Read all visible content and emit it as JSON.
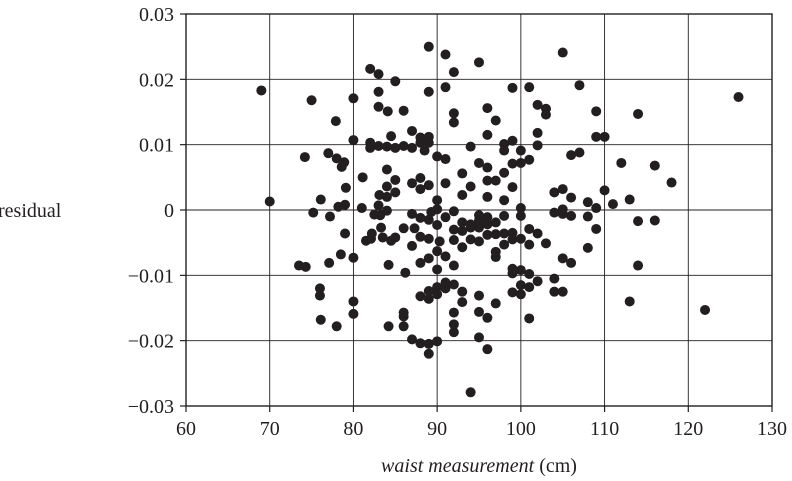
{
  "chart_data": {
    "type": "scatter",
    "xlabel_italic": "waist measurement",
    "xlabel_unit": "(cm)",
    "ylabel": "residual",
    "xlim": [
      60,
      130
    ],
    "ylim": [
      -0.03,
      0.03
    ],
    "x_ticks": [
      "60",
      "70",
      "80",
      "90",
      "100",
      "110",
      "120",
      "130"
    ],
    "y_ticks": [
      "0.03",
      "0.02",
      "0.01",
      "0",
      "−0.01",
      "−0.02",
      "−0.03"
    ],
    "grid": true,
    "marker_color": "#231f20",
    "points": [
      [
        69,
        0.0183
      ],
      [
        70,
        0.0013
      ],
      [
        73.5,
        -0.0085
      ],
      [
        74.2,
        0.0081
      ],
      [
        74.3,
        -0.0087
      ],
      [
        75,
        0.0168
      ],
      [
        75.2,
        -0.0004
      ],
      [
        76,
        -0.012
      ],
      [
        76,
        -0.0131
      ],
      [
        76.1,
        -0.0168
      ],
      [
        76.1,
        0.0016
      ],
      [
        77,
        0.0087
      ],
      [
        77.1,
        -0.0081
      ],
      [
        77.2,
        -0.001
      ],
      [
        77.9,
        0.0136
      ],
      [
        78,
        0.0079
      ],
      [
        78,
        -0.0178
      ],
      [
        78.2,
        0.0005
      ],
      [
        78.5,
        -0.0068
      ],
      [
        78.6,
        0.0066
      ],
      [
        78.9,
        0.0073
      ],
      [
        79,
        0.0008
      ],
      [
        79.1,
        0.0034
      ],
      [
        79,
        -0.0036
      ],
      [
        80,
        0.0171
      ],
      [
        80,
        0.0107
      ],
      [
        80,
        -0.0073
      ],
      [
        80,
        -0.014
      ],
      [
        80,
        -0.0159
      ],
      [
        81,
        0.0003
      ],
      [
        81.1,
        0.005
      ],
      [
        81.5,
        -0.0047
      ],
      [
        82,
        0.0216
      ],
      [
        82,
        0.0103
      ],
      [
        82,
        0.0095
      ],
      [
        82.1,
        -0.0044
      ],
      [
        82.2,
        -0.0036
      ],
      [
        82.5,
        -0.0007
      ],
      [
        83,
        0.0208
      ],
      [
        83,
        0.0181
      ],
      [
        83,
        0.0158
      ],
      [
        83,
        0.0098
      ],
      [
        83,
        0.0007
      ],
      [
        83.1,
        0.0023
      ],
      [
        83.2,
        -0.0008
      ],
      [
        83.3,
        -0.0027
      ],
      [
        83.5,
        -0.0042
      ],
      [
        84,
        0.0097
      ],
      [
        84,
        0.0062
      ],
      [
        84,
        0.0036
      ],
      [
        84,
        0.002
      ],
      [
        84,
        -0.0001
      ],
      [
        84.1,
        0.0151
      ],
      [
        84.2,
        -0.0084
      ],
      [
        84.2,
        -0.0178
      ],
      [
        84.5,
        0.0113
      ],
      [
        84.5,
        -0.0047
      ],
      [
        85,
        0.0197
      ],
      [
        85,
        0.0095
      ],
      [
        85,
        0.0046
      ],
      [
        85,
        0.0027
      ],
      [
        85,
        -0.0042
      ],
      [
        86,
        0.0152
      ],
      [
        86,
        0.0098
      ],
      [
        86,
        -0.0028
      ],
      [
        86,
        -0.0157
      ],
      [
        86,
        -0.0163
      ],
      [
        86,
        -0.0178
      ],
      [
        86.2,
        -0.0096
      ],
      [
        87,
        0.0121
      ],
      [
        87,
        0.0095
      ],
      [
        87,
        0.0041
      ],
      [
        87,
        -0.0006
      ],
      [
        87,
        -0.0055
      ],
      [
        87,
        -0.0198
      ],
      [
        87.3,
        -0.0028
      ],
      [
        88,
        0.0111
      ],
      [
        88,
        0.0103
      ],
      [
        88,
        0.0049
      ],
      [
        88,
        0.0032
      ],
      [
        88,
        -0.0012
      ],
      [
        88,
        -0.0041
      ],
      [
        88,
        -0.0081
      ],
      [
        88,
        -0.0132
      ],
      [
        88,
        -0.0204
      ],
      [
        88.5,
        0.0091
      ],
      [
        89,
        0.025
      ],
      [
        89,
        0.0181
      ],
      [
        89,
        0.0112
      ],
      [
        89,
        0.0103
      ],
      [
        89,
        0.0038
      ],
      [
        89,
        -0.0015
      ],
      [
        89,
        -0.0044
      ],
      [
        89,
        -0.0074
      ],
      [
        89,
        -0.0124
      ],
      [
        89,
        -0.0136
      ],
      [
        89,
        -0.0205
      ],
      [
        89,
        -0.022
      ],
      [
        89.3,
        -0.0003
      ],
      [
        90,
        0.0082
      ],
      [
        90,
        0.0015
      ],
      [
        90,
        0.0001
      ],
      [
        90,
        -0.0023
      ],
      [
        90,
        -0.0063
      ],
      [
        90,
        -0.0091
      ],
      [
        90,
        -0.0118
      ],
      [
        90,
        -0.0129
      ],
      [
        90,
        -0.0201
      ],
      [
        90.3,
        -0.0048
      ],
      [
        91,
        0.0238
      ],
      [
        91,
        0.0188
      ],
      [
        91,
        0.0078
      ],
      [
        91,
        0.0041
      ],
      [
        91,
        -0.0011
      ],
      [
        91,
        -0.0071
      ],
      [
        91,
        -0.0111
      ],
      [
        91,
        -0.012
      ],
      [
        92,
        0.0211
      ],
      [
        92,
        0.0148
      ],
      [
        92,
        0.0134
      ],
      [
        92,
        -0.0002
      ],
      [
        92,
        -0.003
      ],
      [
        92,
        -0.0046
      ],
      [
        92,
        -0.0085
      ],
      [
        92,
        -0.0114
      ],
      [
        92,
        -0.0157
      ],
      [
        92,
        -0.0175
      ],
      [
        92,
        -0.0187
      ],
      [
        93,
        0.0056
      ],
      [
        93,
        0.0023
      ],
      [
        93,
        -0.0019
      ],
      [
        93,
        -0.0032
      ],
      [
        93,
        -0.0057
      ],
      [
        93,
        -0.0141
      ],
      [
        93,
        -0.0125
      ],
      [
        94,
        0.0097
      ],
      [
        94,
        0.0036
      ],
      [
        94,
        -0.0027
      ],
      [
        94,
        -0.0022
      ],
      [
        94,
        -0.0045
      ],
      [
        94,
        -0.0279
      ],
      [
        95,
        0.0226
      ],
      [
        95,
        0.0072
      ],
      [
        95,
        -0.0008
      ],
      [
        95,
        -0.0016
      ],
      [
        95,
        -0.0027
      ],
      [
        95,
        -0.0048
      ],
      [
        95,
        -0.0131
      ],
      [
        95,
        -0.0156
      ],
      [
        95,
        -0.0195
      ],
      [
        96,
        0.0156
      ],
      [
        96,
        0.0115
      ],
      [
        96,
        0.0065
      ],
      [
        96,
        0.0045
      ],
      [
        96,
        0.002
      ],
      [
        96,
        -0.0011
      ],
      [
        96,
        -0.0022
      ],
      [
        96,
        -0.0038
      ],
      [
        96,
        -0.0165
      ],
      [
        96,
        -0.0213
      ],
      [
        97,
        0.0137
      ],
      [
        97,
        0.0045
      ],
      [
        97,
        -0.0019
      ],
      [
        97,
        -0.0037
      ],
      [
        97,
        -0.0064
      ],
      [
        97,
        -0.0072
      ],
      [
        97,
        -0.0143
      ],
      [
        98,
        0.0101
      ],
      [
        98,
        0.0091
      ],
      [
        98,
        0.0057
      ],
      [
        98,
        0.0015
      ],
      [
        98,
        -0.0009
      ],
      [
        98,
        -0.0036
      ],
      [
        98,
        -0.0053
      ],
      [
        99,
        0.0187
      ],
      [
        99,
        0.0106
      ],
      [
        99,
        0.0071
      ],
      [
        99,
        0.0035
      ],
      [
        99,
        -0.0035
      ],
      [
        99,
        -0.0045
      ],
      [
        99,
        -0.009
      ],
      [
        99,
        -0.0097
      ],
      [
        99,
        -0.0126
      ],
      [
        100,
        0.0091
      ],
      [
        100,
        0.0072
      ],
      [
        100,
        0.0003
      ],
      [
        100,
        -0.0009
      ],
      [
        100,
        -0.0044
      ],
      [
        100,
        -0.0092
      ],
      [
        100,
        -0.0115
      ],
      [
        100,
        -0.0129
      ],
      [
        101,
        0.0188
      ],
      [
        101,
        0.0077
      ],
      [
        101,
        -0.0029
      ],
      [
        101,
        -0.0053
      ],
      [
        101,
        -0.0098
      ],
      [
        101,
        -0.0118
      ],
      [
        101,
        -0.0166
      ],
      [
        102,
        0.0161
      ],
      [
        102,
        0.0118
      ],
      [
        102,
        0.0099
      ],
      [
        102,
        -0.0036
      ],
      [
        102,
        -0.0109
      ],
      [
        103,
        0.0155
      ],
      [
        103,
        0.0146
      ],
      [
        103,
        -0.0051
      ],
      [
        104,
        0.0027
      ],
      [
        104,
        -0.0004
      ],
      [
        104,
        -0.0105
      ],
      [
        104,
        -0.0125
      ],
      [
        105,
        0.0241
      ],
      [
        105,
        0.0032
      ],
      [
        105,
        0.0001
      ],
      [
        105,
        -0.0006
      ],
      [
        105,
        -0.0074
      ],
      [
        105,
        -0.0125
      ],
      [
        106,
        0.0084
      ],
      [
        106,
        0.0019
      ],
      [
        106,
        -0.0081
      ],
      [
        106,
        -0.0009
      ],
      [
        107,
        0.0191
      ],
      [
        107,
        0.0088
      ],
      [
        108,
        0.0012
      ],
      [
        108,
        -0.001
      ],
      [
        108,
        -0.0058
      ],
      [
        109,
        0.0151
      ],
      [
        109,
        0.0112
      ],
      [
        109,
        0.0003
      ],
      [
        109,
        -0.0029
      ],
      [
        110,
        0.0112
      ],
      [
        110,
        0.003
      ],
      [
        111,
        0.0009
      ],
      [
        112,
        0.0072
      ],
      [
        113,
        0.0016
      ],
      [
        113,
        -0.014
      ],
      [
        114,
        0.0147
      ],
      [
        114,
        -0.0017
      ],
      [
        114,
        -0.0085
      ],
      [
        116,
        0.0068
      ],
      [
        116,
        -0.0016
      ],
      [
        118,
        0.0042
      ],
      [
        122,
        -0.0153
      ],
      [
        126,
        0.0173
      ]
    ]
  }
}
